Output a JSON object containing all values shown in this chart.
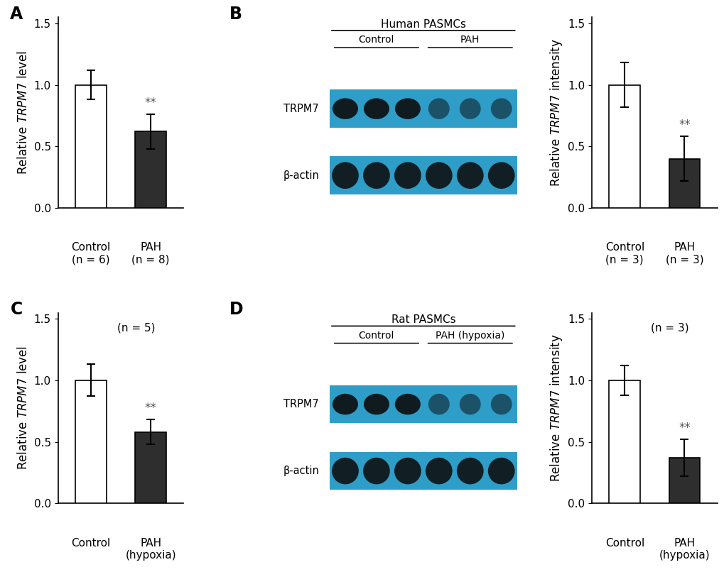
{
  "panel_A": {
    "bars": [
      1.0,
      0.62
    ],
    "errors": [
      0.12,
      0.14
    ],
    "colors": [
      "white",
      "#2e2e2e"
    ],
    "categories": [
      "Control",
      "PAH"
    ],
    "subcategories": [
      "(n = 6)",
      "(n = 8)"
    ],
    "ylabel": "Relative TRPM7 level",
    "ylim": [
      0,
      1.55
    ],
    "yticks": [
      0.0,
      0.5,
      1.0,
      1.5
    ],
    "sig_label": "**",
    "sig_bar_idx": 1,
    "label": "A"
  },
  "panel_B_bar": {
    "bars": [
      1.0,
      0.4
    ],
    "errors": [
      0.18,
      0.18
    ],
    "colors": [
      "white",
      "#2e2e2e"
    ],
    "categories": [
      "Control",
      "PAH"
    ],
    "subcategories": [
      "(n = 3)",
      "(n = 3)"
    ],
    "ylabel": "Relative TRPM7 intensity",
    "ylim": [
      0,
      1.55
    ],
    "yticks": [
      0.0,
      0.5,
      1.0,
      1.5
    ],
    "sig_label": "**",
    "sig_bar_idx": 1,
    "label": "B"
  },
  "panel_B_blot": {
    "title": "Human PASMCs",
    "control_label": "Control",
    "pah_label": "PAH",
    "trpm7_label": "TRPM7",
    "actin_label": "β-actin",
    "bg_color": "#2e9ec9",
    "n_control": 3,
    "n_pah": 3
  },
  "panel_C": {
    "bars": [
      1.0,
      0.58
    ],
    "errors": [
      0.13,
      0.1
    ],
    "colors": [
      "white",
      "#2e2e2e"
    ],
    "categories": [
      "Control",
      "PAH"
    ],
    "subcategories": [
      "",
      "(hypoxia)"
    ],
    "n_label": "(n = 5)",
    "ylabel": "Relative TRPM7 level",
    "ylim": [
      0,
      1.55
    ],
    "yticks": [
      0.0,
      0.5,
      1.0,
      1.5
    ],
    "sig_label": "**",
    "sig_bar_idx": 1,
    "label": "C"
  },
  "panel_D_bar": {
    "bars": [
      1.0,
      0.37
    ],
    "errors": [
      0.12,
      0.15
    ],
    "colors": [
      "white",
      "#2e2e2e"
    ],
    "categories": [
      "Control",
      "PAH"
    ],
    "subcategories": [
      "",
      "(hypoxia)"
    ],
    "n_label": "(n = 3)",
    "ylabel": "Relative TRPM7 intensity",
    "ylim": [
      0,
      1.55
    ],
    "yticks": [
      0.0,
      0.5,
      1.0,
      1.5
    ],
    "sig_label": "**",
    "sig_bar_idx": 1,
    "label": "D"
  },
  "panel_D_blot": {
    "title": "Rat PASMCs",
    "control_label": "Control",
    "pah_label": "PAH (hypoxia)",
    "trpm7_label": "TRPM7",
    "actin_label": "β-actin",
    "bg_color": "#2e9ec9",
    "n_control": 3,
    "n_pah": 3
  },
  "figure_bg": "white",
  "bar_edgecolor": "black",
  "bar_linewidth": 1.2,
  "errorbar_color": "black",
  "errorbar_linewidth": 1.5,
  "errorbar_capsize": 4,
  "tick_fontsize": 11,
  "label_fontsize": 12,
  "panel_label_fontsize": 17
}
